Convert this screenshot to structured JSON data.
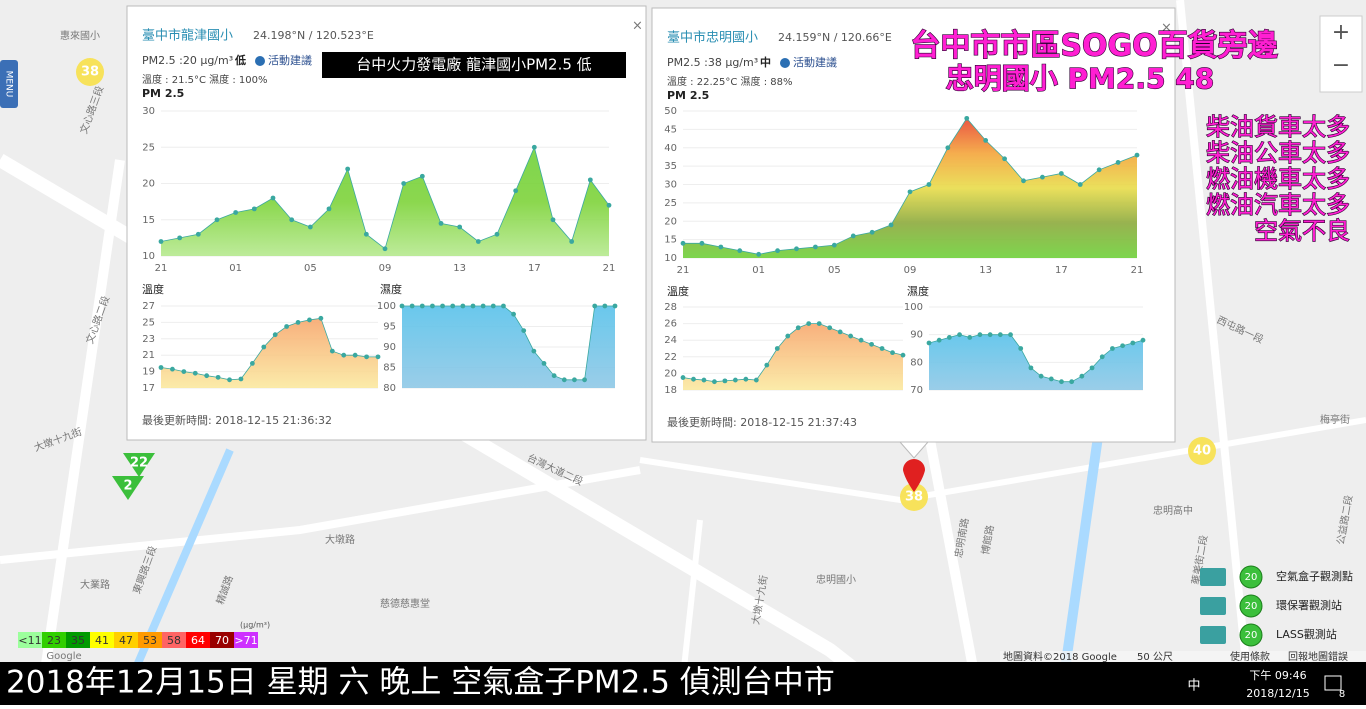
{
  "controls": {
    "menu": "MENU",
    "zoom_in": "+",
    "zoom_out": "−"
  },
  "map": {
    "labels": [
      "惠來國小",
      "文心路三段",
      "文心路二段",
      "大墩十九街",
      "台灣大道二段",
      "大業路",
      "東興路三段",
      "精誠路",
      "大墩路",
      "忠明國小",
      "慈德慈惠堂",
      "忠明南路",
      "博館路",
      "忠明高中",
      "公益路二段",
      "梅亭街",
      "西屯路一段",
      "華美街二段",
      "大墩十九街",
      "Google"
    ],
    "markers": [
      {
        "value": 38,
        "color": "#f7e04a"
      },
      {
        "value": 22,
        "color": "#3bbf3b"
      },
      {
        "value": 2,
        "color": "#3bbf3b"
      },
      {
        "value": 40,
        "color": "#f7e04a"
      },
      {
        "value": 38,
        "color": "#f7e04a"
      }
    ]
  },
  "popups": [
    {
      "title": "臺中市龍津國小",
      "coords": "24.198°N / 120.523°E",
      "close": "×",
      "pm_text": "PM2.5 :20 μg/m³",
      "level": "低",
      "advice": "活動建議",
      "weather": "溫度 : 21.5°C 濕度 : 100%",
      "pm_label": "PM 2.5",
      "temp_label": "溫度",
      "hum_label": "濕度",
      "updated": "最後更新時間: 2018-12-15 21:36:32",
      "pm_chart": {
        "ylim": [
          10,
          30
        ],
        "yticks": [
          10,
          15,
          20,
          25,
          30
        ],
        "xtick_labels": [
          "21",
          "01",
          "05",
          "09",
          "13",
          "17",
          "21"
        ],
        "values": [
          12,
          12.5,
          13,
          15,
          16,
          16.5,
          18,
          15,
          14,
          16.5,
          22,
          13,
          11,
          20,
          21,
          14.5,
          14,
          12,
          13,
          19,
          25,
          15,
          12,
          20.5,
          17
        ],
        "colors": [
          "#6fd13a",
          "#7ed33a",
          "#b6e98f"
        ],
        "point_color": "#3aa8a0"
      },
      "temp_chart": {
        "ylim": [
          17,
          27
        ],
        "yticks": [
          17,
          19,
          21,
          23,
          25,
          27
        ],
        "values": [
          19.5,
          19.3,
          19,
          18.8,
          18.5,
          18.3,
          18,
          18.1,
          20,
          22,
          23.5,
          24.5,
          25,
          25.3,
          25.5,
          21.5,
          21,
          21,
          20.8,
          20.8
        ],
        "colors": [
          "#f7a76e",
          "#fbe9a0"
        ],
        "point_color": "#3aa8a0"
      },
      "hum_chart": {
        "ylim": [
          80,
          100
        ],
        "yticks": [
          80,
          85,
          90,
          95,
          100
        ],
        "values": [
          100,
          100,
          100,
          100,
          100,
          100,
          100,
          100,
          100,
          100,
          100,
          98,
          94,
          89,
          86,
          83,
          82,
          82,
          82,
          100,
          100,
          100
        ],
        "colors": [
          "#59c2ea",
          "#8fc8e6"
        ],
        "point_color": "#3aa8a0"
      }
    },
    {
      "title": "臺中市忠明國小",
      "coords": "24.159°N / 120.66°E",
      "close": "×",
      "pm_text": "PM2.5 :38 μg/m³",
      "level": "中",
      "advice": "活動建議",
      "weather": "溫度 : 22.25°C 濕度 : 88%",
      "pm_label": "PM 2.5",
      "temp_label": "溫度",
      "hum_label": "濕度",
      "updated": "最後更新時間: 2018-12-15 21:37:43",
      "pm_chart": {
        "ylim": [
          10,
          50
        ],
        "yticks": [
          10,
          15,
          20,
          25,
          30,
          35,
          40,
          45,
          50
        ],
        "xtick_labels": [
          "21",
          "01",
          "05",
          "09",
          "13",
          "17",
          "21"
        ],
        "values": [
          14,
          14,
          13,
          12,
          11,
          12,
          12.5,
          13,
          13.5,
          16,
          17,
          19,
          28,
          30,
          40,
          48,
          42,
          37,
          31,
          32,
          33,
          30,
          34,
          36,
          38
        ],
        "colors": [
          "#e8452f",
          "#f4a43a",
          "#e8dc4a",
          "#8caa3c",
          "#6fd13a"
        ],
        "point_color": "#3aa8a0"
      },
      "temp_chart": {
        "ylim": [
          18,
          28
        ],
        "yticks": [
          18,
          20,
          22,
          24,
          26,
          28
        ],
        "values": [
          19.5,
          19.3,
          19.2,
          19,
          19.1,
          19.2,
          19.3,
          19.2,
          21,
          23,
          24.5,
          25.5,
          26,
          26,
          25.5,
          25,
          24.5,
          24,
          23.5,
          23,
          22.5,
          22.2
        ],
        "colors": [
          "#f7a76e",
          "#fbe9a0"
        ],
        "point_color": "#3aa8a0"
      },
      "hum_chart": {
        "ylim": [
          70,
          100
        ],
        "yticks": [
          70,
          80,
          90,
          100
        ],
        "values": [
          87,
          88,
          89,
          90,
          89,
          90,
          90,
          90,
          90,
          85,
          78,
          75,
          74,
          73,
          73,
          75,
          78,
          82,
          85,
          86,
          87,
          88
        ],
        "colors": [
          "#59c2ea",
          "#8fc8e6"
        ],
        "point_color": "#3aa8a0"
      }
    }
  ],
  "annotations": {
    "left": "台中火力發電廠 龍津國小PM2.5 低",
    "headline": [
      "台中市市區SOGO百貨旁邊",
      "忠明國小 PM2.5 48"
    ],
    "causes": [
      "柴油貨車太多",
      "柴油公車太多",
      "燃油機車太多",
      "燃油汽車太多",
      "空氣不良"
    ]
  },
  "scale_legend": {
    "unit": "(μg/m³)",
    "labels": [
      "<11",
      "23",
      "35",
      "41",
      "47",
      "53",
      "58",
      "64",
      "70",
      ">71"
    ],
    "colors": [
      "#9cff9c",
      "#31cf00",
      "#009a00",
      "#ffff00",
      "#ffcf00",
      "#ff9a00",
      "#ff6464",
      "#ff0000",
      "#990000",
      "#ce30ff"
    ]
  },
  "station_legend": [
    {
      "value": 20,
      "label": "空氣盒子觀測點"
    },
    {
      "value": 20,
      "label": "環保署觀測站"
    },
    {
      "value": 20,
      "label": "LASS觀測站"
    }
  ],
  "attribution": [
    "地圖資料©2018 Google",
    "50 公尺",
    "使用條款",
    "回報地圖錯誤"
  ],
  "caption": "2018年12月15日 星期 六 晚上 空氣盒子PM2.5 偵測台中市",
  "taskbar": {
    "ime": "中",
    "time": "下午 09:46",
    "date": "2018/12/15",
    "notifications": 8
  }
}
